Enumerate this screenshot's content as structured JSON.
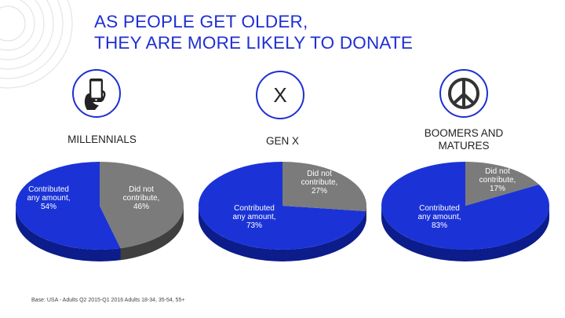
{
  "title": {
    "line1": "AS PEOPLE GET OLDER,",
    "line2": "THEY ARE MORE LIKELY TO DONATE"
  },
  "colors": {
    "accent": "#1f2fd1",
    "contributed": "#1b33d6",
    "contributed_side": "#0c1c8a",
    "not_contributed": "#7b7b7b",
    "not_contributed_side": "#3f3f3f"
  },
  "groups": [
    {
      "icon": "smartphone-hand-icon",
      "label_line1": "MILLENNIALS",
      "label_line2": ""
    },
    {
      "icon": "x-letter-icon",
      "label_line1": "GEN X",
      "label_line2": ""
    },
    {
      "icon": "peace-sign-icon",
      "label_line1": "BOOMERS AND",
      "label_line2": "MATURES"
    }
  ],
  "chart_data": [
    {
      "type": "pie",
      "title": "MILLENNIALS",
      "categories": [
        "Contributed any amount",
        "Did not contribute"
      ],
      "values": [
        54,
        46
      ],
      "labels": [
        [
          "Contributed",
          "any amount,",
          "54%"
        ],
        [
          "Did not",
          "contribute,",
          "46%"
        ]
      ]
    },
    {
      "type": "pie",
      "title": "GEN X",
      "categories": [
        "Contributed any amount",
        "Did not contribute"
      ],
      "values": [
        73,
        27
      ],
      "labels": [
        [
          "Contributed",
          "any amount,",
          "73%"
        ],
        [
          "Did not",
          "contribute,",
          "27%"
        ]
      ]
    },
    {
      "type": "pie",
      "title": "BOOMERS AND MATURES",
      "categories": [
        "Contributed any amount",
        "Did not contribute"
      ],
      "values": [
        83,
        17
      ],
      "labels": [
        [
          "Contributed",
          "any amount,",
          "83%"
        ],
        [
          "Did not",
          "contribute,",
          "17%"
        ]
      ]
    }
  ],
  "footnote": "Base: USA - Adults Q2 2015-Q1 2016 Adults 18-34, 35-54, 55+"
}
